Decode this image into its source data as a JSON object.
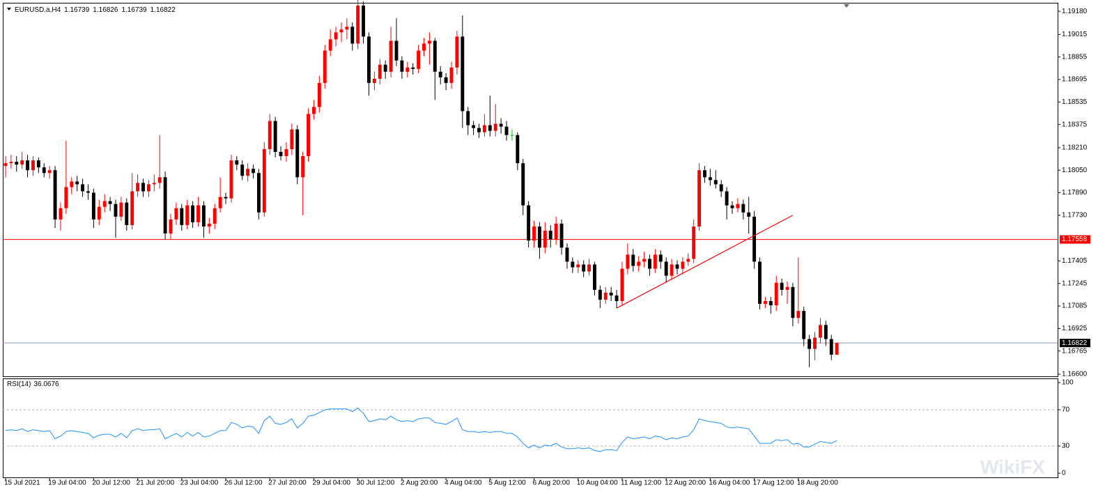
{
  "chart_data": {
    "type": "candlestick",
    "symbol": "EURUSD.a,H4",
    "bull_color": "#ff0000",
    "bear_color": "#000000",
    "doji_color": "#00c000",
    "xlim": [
      -0.5,
      191.1
    ],
    "ylim": [
      1.16585,
      1.1924
    ],
    "xticks": [
      {
        "value": 0,
        "label": "15 Jul 2021"
      },
      {
        "value": 8,
        "label": "19 Jul 04:00"
      },
      {
        "value": 16,
        "label": "20 Jul 12:00"
      },
      {
        "value": 24,
        "label": "21 Jul 20:00"
      },
      {
        "value": 32,
        "label": "23 Jul 04:00"
      },
      {
        "value": 40,
        "label": "26 Jul 12:00"
      },
      {
        "value": 48,
        "label": "27 Jul 20:00"
      },
      {
        "value": 56,
        "label": "29 Jul 04:00"
      },
      {
        "value": 64,
        "label": "30 Jul 12:00"
      },
      {
        "value": 72,
        "label": "2 Aug 20:00"
      },
      {
        "value": 80,
        "label": "4 Aug 04:00"
      },
      {
        "value": 88,
        "label": "5 Aug 12:00"
      },
      {
        "value": 96,
        "label": "6 Aug 20:00"
      },
      {
        "value": 104,
        "label": "10 Aug 04:00"
      },
      {
        "value": 112,
        "label": "11 Aug 12:00"
      },
      {
        "value": 120,
        "label": "12 Aug 20:00"
      },
      {
        "value": 128,
        "label": "16 Aug 04:00"
      },
      {
        "value": 136,
        "label": "17 Aug 12:00"
      },
      {
        "value": 144,
        "label": "18 Aug 20:00"
      }
    ],
    "yticks": [
      {
        "value": 1.1918,
        "label": "1.19180"
      },
      {
        "value": 1.19015,
        "label": "1.19015"
      },
      {
        "value": 1.18855,
        "label": "1.18855"
      },
      {
        "value": 1.18695,
        "label": "1.18695"
      },
      {
        "value": 1.18535,
        "label": "1.18535"
      },
      {
        "value": 1.18375,
        "label": "1.18375"
      },
      {
        "value": 1.1821,
        "label": "1.18210"
      },
      {
        "value": 1.1805,
        "label": "1.18050"
      },
      {
        "value": 1.1789,
        "label": "1.17890"
      },
      {
        "value": 1.1773,
        "label": "1.17730"
      },
      {
        "value": 1.17405,
        "label": "1.17405"
      },
      {
        "value": 1.17245,
        "label": "1.17245"
      },
      {
        "value": 1.17085,
        "label": "1.17085"
      },
      {
        "value": 1.16925,
        "label": "1.16925"
      },
      {
        "value": 1.16765,
        "label": "1.16765"
      },
      {
        "value": 1.166,
        "label": "1.16600"
      }
    ],
    "hlines": [
      {
        "value": 1.17558,
        "color": "#ff0000",
        "label_background": "#ff0000"
      },
      {
        "value": 1.16822,
        "color": "#8a9aae",
        "label_background": "#000000"
      }
    ],
    "trendline": {
      "x": [
        111,
        143
      ],
      "y": [
        1.1707,
        1.1773
      ],
      "color": "#ff0000"
    },
    "ohlc": [
      [
        1.1808,
        1.1815,
        1.18,
        1.181
      ],
      [
        1.181,
        1.1816,
        1.1806,
        1.1811
      ],
      [
        1.1811,
        1.1815,
        1.1804,
        1.1809
      ],
      [
        1.1809,
        1.1818,
        1.1806,
        1.1812
      ],
      [
        1.1812,
        1.1816,
        1.18,
        1.1805
      ],
      [
        1.1805,
        1.1815,
        1.1801,
        1.1812
      ],
      [
        1.1812,
        1.1814,
        1.1803,
        1.1807
      ],
      [
        1.1807,
        1.181,
        1.18,
        1.1803
      ],
      [
        1.1803,
        1.1808,
        1.1799,
        1.1805
      ],
      [
        1.1805,
        1.1808,
        1.1764,
        1.177
      ],
      [
        1.177,
        1.1782,
        1.1762,
        1.1778
      ],
      [
        1.1778,
        1.1826,
        1.1774,
        1.1793
      ],
      [
        1.1793,
        1.18,
        1.1788,
        1.1797
      ],
      [
        1.1797,
        1.1801,
        1.179,
        1.1795
      ],
      [
        1.1795,
        1.1799,
        1.1786,
        1.179
      ],
      [
        1.179,
        1.1795,
        1.1784,
        1.1789
      ],
      [
        1.1789,
        1.1792,
        1.1764,
        1.177
      ],
      [
        1.177,
        1.1784,
        1.1766,
        1.1779
      ],
      [
        1.1779,
        1.1788,
        1.1775,
        1.1783
      ],
      [
        1.1783,
        1.1786,
        1.1776,
        1.1781
      ],
      [
        1.1781,
        1.1784,
        1.1757,
        1.1772
      ],
      [
        1.1772,
        1.1786,
        1.1769,
        1.1782
      ],
      [
        1.1782,
        1.1785,
        1.1762,
        1.1766
      ],
      [
        1.1766,
        1.1803,
        1.1763,
        1.179
      ],
      [
        1.179,
        1.1802,
        1.1786,
        1.1796
      ],
      [
        1.1796,
        1.1799,
        1.1786,
        1.179
      ],
      [
        1.179,
        1.1798,
        1.1786,
        1.1795
      ],
      [
        1.1795,
        1.1802,
        1.179,
        1.1796
      ],
      [
        1.1796,
        1.183,
        1.1792,
        1.18
      ],
      [
        1.18,
        1.1804,
        1.1756,
        1.176
      ],
      [
        1.176,
        1.1774,
        1.1756,
        1.177
      ],
      [
        1.177,
        1.1782,
        1.1766,
        1.1778
      ],
      [
        1.1778,
        1.1781,
        1.1762,
        1.1766
      ],
      [
        1.1766,
        1.1784,
        1.1763,
        1.178
      ],
      [
        1.178,
        1.1783,
        1.1764,
        1.1768
      ],
      [
        1.1768,
        1.1786,
        1.1765,
        1.178
      ],
      [
        1.178,
        1.1783,
        1.1757,
        1.1765
      ],
      [
        1.1765,
        1.1771,
        1.176,
        1.1767
      ],
      [
        1.1767,
        1.1781,
        1.1763,
        1.1778
      ],
      [
        1.1778,
        1.18,
        1.1775,
        1.1786
      ],
      [
        1.1786,
        1.1789,
        1.1781,
        1.1785
      ],
      [
        1.1785,
        1.1816,
        1.1782,
        1.1812
      ],
      [
        1.1812,
        1.1815,
        1.1805,
        1.1809
      ],
      [
        1.1809,
        1.1812,
        1.1798,
        1.1801
      ],
      [
        1.1801,
        1.181,
        1.1797,
        1.1806
      ],
      [
        1.1806,
        1.1809,
        1.1799,
        1.1803
      ],
      [
        1.1803,
        1.1806,
        1.177,
        1.1775
      ],
      [
        1.1775,
        1.1825,
        1.1772,
        1.182
      ],
      [
        1.182,
        1.1845,
        1.1816,
        1.184
      ],
      [
        1.184,
        1.1843,
        1.1814,
        1.1818
      ],
      [
        1.1818,
        1.1822,
        1.1812,
        1.1815
      ],
      [
        1.1815,
        1.1825,
        1.1811,
        1.182
      ],
      [
        1.182,
        1.1838,
        1.1816,
        1.1834
      ],
      [
        1.1834,
        1.1837,
        1.1795,
        1.18
      ],
      [
        1.18,
        1.1818,
        1.1773,
        1.1815
      ],
      [
        1.1815,
        1.1849,
        1.1811,
        1.1845
      ],
      [
        1.1845,
        1.1855,
        1.1841,
        1.185
      ],
      [
        1.185,
        1.1872,
        1.1846,
        1.1867
      ],
      [
        1.1867,
        1.1894,
        1.1863,
        1.189
      ],
      [
        1.189,
        1.1905,
        1.1886,
        1.1898
      ],
      [
        1.1898,
        1.1907,
        1.1893,
        1.1903
      ],
      [
        1.1903,
        1.191,
        1.1896,
        1.1905
      ],
      [
        1.1905,
        1.1913,
        1.1898,
        1.1907
      ],
      [
        1.1907,
        1.191,
        1.189,
        1.1895
      ],
      [
        1.1895,
        1.1927,
        1.1891,
        1.1922
      ],
      [
        1.1922,
        1.1925,
        1.1895,
        1.19
      ],
      [
        1.19,
        1.1903,
        1.1858,
        1.1867
      ],
      [
        1.1867,
        1.1875,
        1.1862,
        1.187
      ],
      [
        1.187,
        1.1884,
        1.1866,
        1.188
      ],
      [
        1.188,
        1.1883,
        1.187,
        1.1875
      ],
      [
        1.1875,
        1.1907,
        1.1871,
        1.1897
      ],
      [
        1.1897,
        1.1913,
        1.1879,
        1.1883
      ],
      [
        1.1883,
        1.1886,
        1.187,
        1.1875
      ],
      [
        1.1875,
        1.1882,
        1.1871,
        1.1878
      ],
      [
        1.1878,
        1.1881,
        1.1873,
        1.1877
      ],
      [
        1.1877,
        1.1894,
        1.1874,
        1.189
      ],
      [
        1.189,
        1.1899,
        1.1886,
        1.1895
      ],
      [
        1.1895,
        1.1903,
        1.188,
        1.1897
      ],
      [
        1.1897,
        1.1899,
        1.1855,
        1.1875
      ],
      [
        1.1875,
        1.1879,
        1.1866,
        1.1871
      ],
      [
        1.1871,
        1.1874,
        1.1862,
        1.1867
      ],
      [
        1.1867,
        1.1882,
        1.1863,
        1.1878
      ],
      [
        1.1878,
        1.1904,
        1.1873,
        1.19
      ],
      [
        1.19,
        1.1915,
        1.1835,
        1.1847
      ],
      [
        1.1847,
        1.185,
        1.183,
        1.1837
      ],
      [
        1.1837,
        1.184,
        1.183,
        1.1835
      ],
      [
        1.1835,
        1.1838,
        1.1828,
        1.1832
      ],
      [
        1.1832,
        1.1845,
        1.1829,
        1.1837
      ],
      [
        1.1837,
        1.1858,
        1.1829,
        1.1833
      ],
      [
        1.1833,
        1.1852,
        1.1829,
        1.1838
      ],
      [
        1.1838,
        1.1842,
        1.1831,
        1.1836
      ],
      [
        1.1836,
        1.184,
        1.1826,
        1.183
      ],
      [
        1.183,
        1.1834,
        1.1826,
        1.183
      ],
      [
        1.183,
        1.1832,
        1.1805,
        1.181
      ],
      [
        1.181,
        1.1813,
        1.1773,
        1.178
      ],
      [
        1.178,
        1.1783,
        1.175,
        1.1755
      ],
      [
        1.1755,
        1.1769,
        1.175,
        1.1765
      ],
      [
        1.1765,
        1.1768,
        1.1742,
        1.175
      ],
      [
        1.175,
        1.1768,
        1.1746,
        1.1762
      ],
      [
        1.1762,
        1.1766,
        1.175,
        1.1756
      ],
      [
        1.1756,
        1.1772,
        1.1752,
        1.1767
      ],
      [
        1.1767,
        1.177,
        1.1745,
        1.175
      ],
      [
        1.175,
        1.1753,
        1.1735,
        1.174
      ],
      [
        1.174,
        1.1743,
        1.1732,
        1.1736
      ],
      [
        1.1736,
        1.1741,
        1.1732,
        1.1738
      ],
      [
        1.1738,
        1.1741,
        1.1729,
        1.1733
      ],
      [
        1.1733,
        1.1742,
        1.173,
        1.1738
      ],
      [
        1.1738,
        1.174,
        1.1716,
        1.172
      ],
      [
        1.172,
        1.1723,
        1.1707,
        1.1713
      ],
      [
        1.1713,
        1.1722,
        1.171,
        1.1718
      ],
      [
        1.1718,
        1.1722,
        1.1712,
        1.1716
      ],
      [
        1.1716,
        1.172,
        1.1707,
        1.1712
      ],
      [
        1.1712,
        1.174,
        1.1709,
        1.1735
      ],
      [
        1.1735,
        1.1753,
        1.1731,
        1.1745
      ],
      [
        1.1745,
        1.1749,
        1.1733,
        1.1737
      ],
      [
        1.1737,
        1.1744,
        1.1733,
        1.174
      ],
      [
        1.174,
        1.1747,
        1.1736,
        1.1742
      ],
      [
        1.1742,
        1.1745,
        1.173,
        1.1735
      ],
      [
        1.1735,
        1.1749,
        1.1732,
        1.1745
      ],
      [
        1.1745,
        1.1748,
        1.1735,
        1.174
      ],
      [
        1.174,
        1.1743,
        1.1725,
        1.173
      ],
      [
        1.173,
        1.1742,
        1.1727,
        1.1738
      ],
      [
        1.1738,
        1.1741,
        1.1731,
        1.1735
      ],
      [
        1.1735,
        1.1743,
        1.1731,
        1.174
      ],
      [
        1.174,
        1.1746,
        1.1737,
        1.1742
      ],
      [
        1.1742,
        1.177,
        1.1739,
        1.1765
      ],
      [
        1.1765,
        1.181,
        1.1762,
        1.1805
      ],
      [
        1.1805,
        1.1808,
        1.1796,
        1.18
      ],
      [
        1.18,
        1.1806,
        1.1794,
        1.1798
      ],
      [
        1.1798,
        1.1805,
        1.1792,
        1.1795
      ],
      [
        1.1795,
        1.1798,
        1.1786,
        1.179
      ],
      [
        1.179,
        1.1793,
        1.177,
        1.178
      ],
      [
        1.178,
        1.1783,
        1.1774,
        1.1778
      ],
      [
        1.1778,
        1.1785,
        1.1775,
        1.1781
      ],
      [
        1.1781,
        1.1784,
        1.177,
        1.1775
      ],
      [
        1.1775,
        1.1786,
        1.176,
        1.1772
      ],
      [
        1.1772,
        1.1776,
        1.1735,
        1.174
      ],
      [
        1.174,
        1.1743,
        1.1706,
        1.171
      ],
      [
        1.171,
        1.1715,
        1.1707,
        1.1712
      ],
      [
        1.1712,
        1.1715,
        1.1703,
        1.1709
      ],
      [
        1.1709,
        1.173,
        1.1705,
        1.1725
      ],
      [
        1.1725,
        1.1728,
        1.1716,
        1.172
      ],
      [
        1.172,
        1.1726,
        1.171,
        1.1722
      ],
      [
        1.1722,
        1.1725,
        1.1694,
        1.17
      ],
      [
        1.17,
        1.1743,
        1.1696,
        1.1705
      ],
      [
        1.1705,
        1.1708,
        1.168,
        1.1685
      ],
      [
        1.1685,
        1.1688,
        1.1665,
        1.1678
      ],
      [
        1.1678,
        1.169,
        1.167,
        1.1686
      ],
      [
        1.1686,
        1.17,
        1.1682,
        1.1695
      ],
      [
        1.1695,
        1.1698,
        1.168,
        1.1685
      ],
      [
        1.1685,
        1.1688,
        1.167,
        1.16739
      ],
      [
        1.16739,
        1.16826,
        1.16739,
        1.16822
      ]
    ],
    "rsi": {
      "name": "RSI(14)",
      "color": "#1e90ff",
      "ylim": [
        -4.6,
        104.6
      ],
      "yticks": [
        100,
        70,
        30,
        0
      ],
      "levels": [
        70,
        30
      ],
      "values": [
        47,
        48,
        47,
        49,
        46,
        48,
        47,
        46,
        47,
        38,
        41,
        46,
        47,
        46,
        45,
        44,
        39,
        42,
        43,
        43,
        40,
        44,
        39,
        47,
        49,
        47,
        48,
        48,
        49,
        38,
        41,
        44,
        40,
        45,
        41,
        45,
        40,
        41,
        44,
        47,
        47,
        56,
        54,
        50,
        52,
        51,
        44,
        58,
        63,
        55,
        54,
        56,
        60,
        50,
        55,
        63,
        64,
        67,
        70,
        71,
        71,
        71,
        71,
        68,
        72,
        66,
        57,
        58,
        60,
        59,
        63,
        59,
        57,
        58,
        57,
        60,
        61,
        61,
        56,
        55,
        54,
        57,
        61,
        48,
        46,
        46,
        45,
        46,
        45,
        46,
        46,
        44,
        44,
        40,
        33,
        28,
        31,
        28,
        31,
        30,
        33,
        29,
        27,
        27,
        28,
        27,
        28,
        25,
        24,
        26,
        26,
        25,
        34,
        40,
        38,
        39,
        40,
        38,
        41,
        40,
        37,
        39,
        38,
        40,
        41,
        48,
        60,
        58,
        57,
        56,
        55,
        51,
        50,
        51,
        50,
        49,
        41,
        33,
        33,
        33,
        37,
        36,
        37,
        32,
        33,
        29,
        29,
        32,
        35,
        34,
        33,
        36.0676
      ]
    },
    "watermark": "WikiFX"
  }
}
